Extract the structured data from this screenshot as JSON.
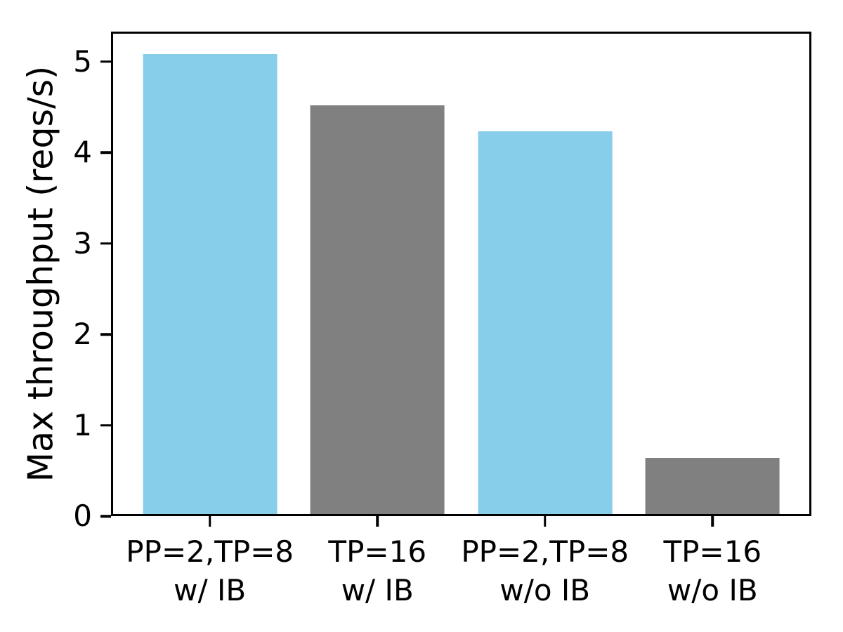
{
  "figure": {
    "background_color": "#ffffff",
    "axis_color": "#000000"
  },
  "chart_data": {
    "type": "bar",
    "title": "",
    "xlabel": "",
    "ylabel": "Max throughput (reqs/s)",
    "categories": [
      "PP=2,TP=8\nw/ IB",
      "TP=16\nw/ IB",
      "PP=2,TP=8\nw/o IB",
      "TP=16\nw/o IB"
    ],
    "values": [
      5.08,
      4.52,
      4.23,
      0.64
    ],
    "bar_colors": [
      "#87CEEB",
      "#808080",
      "#87CEEB",
      "#808080"
    ],
    "yticks": [
      0,
      1,
      2,
      3,
      4,
      5
    ],
    "ytick_labels": [
      "0",
      "1",
      "2",
      "3",
      "4",
      "5"
    ],
    "ylim": [
      0,
      5.33
    ],
    "xlim": [
      -0.59,
      3.59
    ],
    "bar_width": 0.8,
    "grid": false,
    "legend": null
  }
}
